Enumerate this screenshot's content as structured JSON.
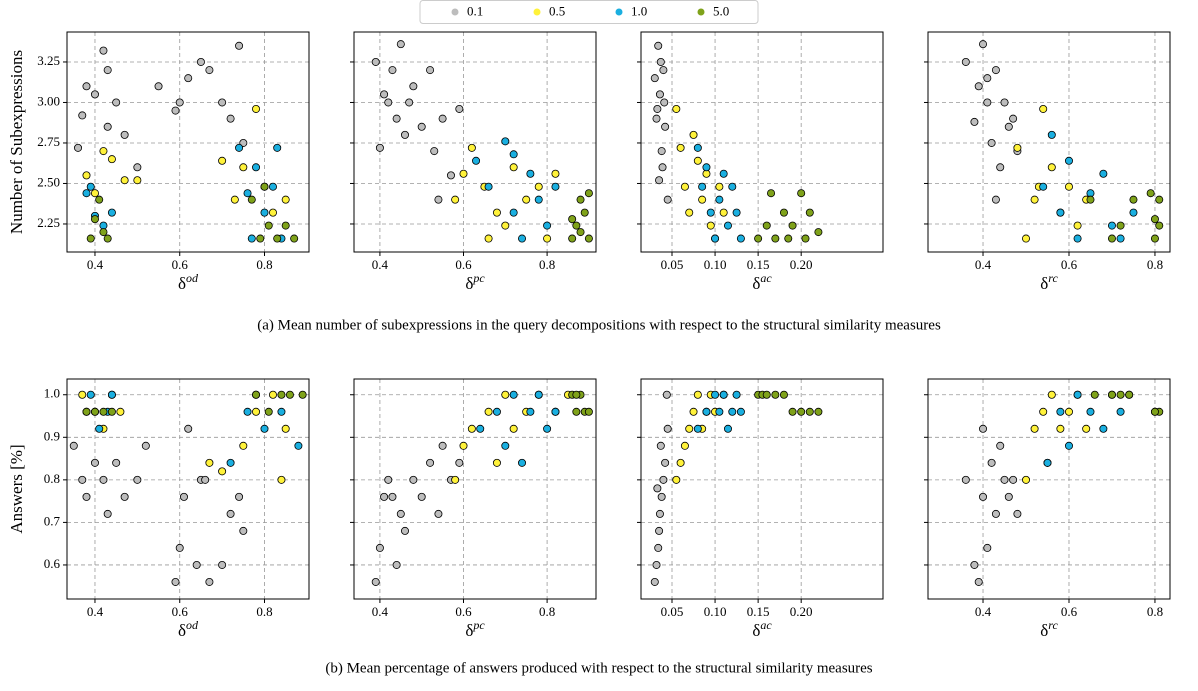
{
  "legend": [
    {
      "name": "0.1",
      "color": "#bdbdbd"
    },
    {
      "name": "0.5",
      "color": "#fff23a"
    },
    {
      "name": "1.0",
      "color": "#1aafe0"
    },
    {
      "name": "5.0",
      "color": "#7fa21a"
    }
  ],
  "captions": [
    "(a) Mean number of subexpressions in the query decompositions with respect to the structural similarity measures",
    "(b) Mean percentage of answers produced with respect to the structural similarity measures"
  ],
  "chart_data": [
    {
      "type": "scatter",
      "y_label": "Number of Subexpressions",
      "x_label": "δ",
      "x_label_superscript": "od",
      "grid": true,
      "xlim": [
        0.334,
        0.905
      ],
      "xticks": [
        0.4,
        0.6,
        0.8
      ],
      "ylim": [
        2.077,
        3.435
      ],
      "yticks": [
        2.25,
        {
          "value": 2.5,
          "label": "2.50"
        },
        2.75,
        {
          "value": 3,
          "label": "3.00"
        },
        3.25
      ],
      "series": [
        {
          "x": [
            0.36,
            0.37,
            0.38,
            0.4,
            0.42,
            0.43,
            0.43,
            0.45,
            0.47,
            0.5,
            0.55,
            0.59,
            0.6,
            0.62,
            0.65,
            0.67,
            0.7,
            0.72,
            0.74,
            0.75
          ],
          "y": [
            2.72,
            2.92,
            3.1,
            3.05,
            3.32,
            3.2,
            2.85,
            3.0,
            2.8,
            2.6,
            3.1,
            2.95,
            3.0,
            3.15,
            3.25,
            3.2,
            3.0,
            2.9,
            3.35,
            2.75
          ]
        },
        {
          "x": [
            0.38,
            0.4,
            0.42,
            0.44,
            0.47,
            0.5,
            0.7,
            0.73,
            0.75,
            0.78,
            0.8,
            0.82,
            0.85
          ],
          "y": [
            2.55,
            2.44,
            2.7,
            2.65,
            2.52,
            2.52,
            2.64,
            2.4,
            2.6,
            2.96,
            2.48,
            2.32,
            2.4
          ]
        },
        {
          "x": [
            0.38,
            0.39,
            0.4,
            0.42,
            0.44,
            0.74,
            0.76,
            0.77,
            0.78,
            0.8,
            0.82,
            0.83,
            0.84
          ],
          "y": [
            2.44,
            2.48,
            2.3,
            2.24,
            2.32,
            2.72,
            2.44,
            2.16,
            2.6,
            2.32,
            2.48,
            2.72,
            2.16
          ]
        },
        {
          "x": [
            0.39,
            0.4,
            0.41,
            0.42,
            0.43,
            0.77,
            0.79,
            0.81,
            0.83,
            0.85,
            0.87,
            0.8
          ],
          "y": [
            2.16,
            2.28,
            2.4,
            2.2,
            2.16,
            2.4,
            2.16,
            2.24,
            2.16,
            2.24,
            2.16,
            2.48
          ]
        }
      ]
    },
    {
      "type": "scatter",
      "x_label": "δ",
      "x_label_superscript": "pc",
      "grid": true,
      "sharey": true,
      "xlim": [
        0.338,
        0.917
      ],
      "xticks": [
        0.4,
        0.6,
        0.8
      ],
      "series": [
        {
          "x": [
            0.39,
            0.4,
            0.41,
            0.43,
            0.44,
            0.45,
            0.47,
            0.48,
            0.5,
            0.52,
            0.53,
            0.55,
            0.57,
            0.59,
            0.42,
            0.46,
            0.54
          ],
          "y": [
            3.25,
            2.72,
            3.05,
            3.2,
            2.9,
            3.36,
            3.0,
            3.1,
            2.85,
            3.2,
            2.7,
            2.9,
            2.55,
            2.96,
            3.0,
            2.8,
            2.4
          ]
        },
        {
          "x": [
            0.58,
            0.6,
            0.62,
            0.65,
            0.68,
            0.7,
            0.72,
            0.75,
            0.78,
            0.8,
            0.82,
            0.66
          ],
          "y": [
            2.4,
            2.56,
            2.72,
            2.48,
            2.32,
            2.24,
            2.6,
            2.4,
            2.48,
            2.16,
            2.56,
            2.16
          ]
        },
        {
          "x": [
            0.63,
            0.66,
            0.7,
            0.72,
            0.74,
            0.76,
            0.78,
            0.8,
            0.82,
            0.72
          ],
          "y": [
            2.64,
            2.48,
            2.76,
            2.32,
            2.16,
            2.56,
            2.4,
            2.24,
            2.48,
            2.68
          ]
        },
        {
          "x": [
            0.86,
            0.87,
            0.88,
            0.89,
            0.9,
            0.86,
            0.88,
            0.9
          ],
          "y": [
            2.16,
            2.24,
            2.4,
            2.32,
            2.44,
            2.28,
            2.2,
            2.16
          ]
        }
      ]
    },
    {
      "type": "scatter",
      "x_label": "δ",
      "x_label_superscript": "ac",
      "grid": true,
      "sharey": true,
      "xlim": [
        0.014,
        0.295
      ],
      "xticks": [
        0.05,
        {
          "value": 0.1,
          "label": "0.10"
        },
        0.15,
        {
          "value": 0.2,
          "label": "0.20"
        }
      ],
      "series": [
        {
          "x": [
            0.03,
            0.032,
            0.034,
            0.036,
            0.038,
            0.04,
            0.042,
            0.035,
            0.037,
            0.033,
            0.039,
            0.041,
            0.045
          ],
          "y": [
            3.15,
            2.9,
            3.35,
            3.05,
            2.7,
            3.2,
            2.85,
            2.52,
            3.25,
            2.96,
            2.6,
            3.0,
            2.4
          ]
        },
        {
          "x": [
            0.055,
            0.06,
            0.065,
            0.07,
            0.075,
            0.08,
            0.085,
            0.09,
            0.095,
            0.1,
            0.105,
            0.11
          ],
          "y": [
            2.96,
            2.72,
            2.48,
            2.32,
            2.8,
            2.64,
            2.4,
            2.56,
            2.24,
            2.16,
            2.48,
            2.32
          ]
        },
        {
          "x": [
            0.08,
            0.085,
            0.09,
            0.095,
            0.1,
            0.105,
            0.11,
            0.115,
            0.12,
            0.125,
            0.13
          ],
          "y": [
            2.72,
            2.48,
            2.6,
            2.32,
            2.16,
            2.4,
            2.56,
            2.24,
            2.48,
            2.32,
            2.16
          ]
        },
        {
          "x": [
            0.15,
            0.16,
            0.165,
            0.17,
            0.18,
            0.185,
            0.19,
            0.2,
            0.205,
            0.21,
            0.22
          ],
          "y": [
            2.16,
            2.24,
            2.44,
            2.16,
            2.32,
            2.16,
            2.24,
            2.44,
            2.16,
            2.32,
            2.2
          ]
        }
      ]
    },
    {
      "type": "scatter",
      "x_label": "δ",
      "x_label_superscript": "rc",
      "grid": true,
      "sharey": true,
      "xlim": [
        0.272,
        0.835
      ],
      "xticks": [
        0.4,
        0.6,
        0.8
      ],
      "series": [
        {
          "x": [
            0.36,
            0.38,
            0.39,
            0.4,
            0.41,
            0.42,
            0.43,
            0.44,
            0.45,
            0.46,
            0.47,
            0.48,
            0.43,
            0.41
          ],
          "y": [
            3.25,
            2.88,
            3.1,
            3.36,
            3.0,
            2.75,
            3.2,
            2.6,
            3.0,
            2.85,
            2.9,
            2.7,
            2.4,
            3.15
          ]
        },
        {
          "x": [
            0.48,
            0.5,
            0.52,
            0.54,
            0.56,
            0.58,
            0.6,
            0.62,
            0.64,
            0.53
          ],
          "y": [
            2.72,
            2.16,
            2.4,
            2.96,
            2.6,
            2.32,
            2.48,
            2.24,
            2.4,
            2.48
          ]
        },
        {
          "x": [
            0.54,
            0.56,
            0.58,
            0.6,
            0.62,
            0.65,
            0.68,
            0.7,
            0.72,
            0.75
          ],
          "y": [
            2.48,
            2.8,
            2.32,
            2.64,
            2.16,
            2.44,
            2.56,
            2.24,
            2.16,
            2.32
          ]
        },
        {
          "x": [
            0.65,
            0.7,
            0.72,
            0.75,
            0.79,
            0.8,
            0.81,
            0.8,
            0.81
          ],
          "y": [
            2.4,
            2.16,
            2.24,
            2.4,
            2.44,
            2.16,
            2.24,
            2.28,
            2.4
          ]
        }
      ]
    },
    {
      "type": "scatter",
      "y_label": "Answers [%]",
      "x_label": "δ",
      "x_label_superscript": "od",
      "grid": true,
      "xlim": [
        0.334,
        0.905
      ],
      "xticks": [
        0.4,
        0.6,
        0.8
      ],
      "ylim": [
        0.52,
        1.037
      ],
      "yticks": [
        0.6,
        0.7,
        0.8,
        0.9,
        {
          "value": 1,
          "label": "1.0"
        }
      ],
      "series": [
        {
          "x": [
            0.35,
            0.37,
            0.38,
            0.4,
            0.42,
            0.43,
            0.45,
            0.47,
            0.5,
            0.52,
            0.59,
            0.6,
            0.61,
            0.62,
            0.64,
            0.65,
            0.67,
            0.7,
            0.72,
            0.74,
            0.75,
            0.66
          ],
          "y": [
            0.88,
            0.8,
            0.76,
            0.84,
            0.8,
            0.72,
            0.84,
            0.76,
            0.8,
            0.88,
            0.56,
            0.64,
            0.76,
            0.92,
            0.6,
            0.8,
            0.56,
            0.6,
            0.72,
            0.76,
            0.68,
            0.8
          ]
        },
        {
          "x": [
            0.37,
            0.4,
            0.42,
            0.44,
            0.46,
            0.67,
            0.7,
            0.75,
            0.78,
            0.82,
            0.84,
            0.85
          ],
          "y": [
            1.0,
            0.96,
            0.92,
            1.0,
            0.96,
            0.84,
            0.82,
            0.88,
            0.96,
            1.0,
            0.8,
            0.92
          ]
        },
        {
          "x": [
            0.38,
            0.39,
            0.41,
            0.43,
            0.44,
            0.72,
            0.76,
            0.78,
            0.8,
            0.84,
            0.88
          ],
          "y": [
            0.96,
            1.0,
            0.92,
            0.96,
            1.0,
            0.84,
            0.96,
            1.0,
            0.92,
            0.96,
            0.88
          ]
        },
        {
          "x": [
            0.38,
            0.4,
            0.42,
            0.44,
            0.78,
            0.81,
            0.84,
            0.86,
            0.89
          ],
          "y": [
            0.96,
            0.96,
            0.96,
            0.96,
            1.0,
            0.96,
            1.0,
            1.0,
            1.0
          ]
        }
      ]
    },
    {
      "type": "scatter",
      "x_label": "δ",
      "x_label_superscript": "pc",
      "grid": true,
      "sharey": true,
      "xlim": [
        0.338,
        0.917
      ],
      "xticks": [
        0.4,
        0.6,
        0.8
      ],
      "series": [
        {
          "x": [
            0.39,
            0.4,
            0.41,
            0.42,
            0.44,
            0.45,
            0.46,
            0.48,
            0.5,
            0.52,
            0.54,
            0.55,
            0.57,
            0.59,
            0.43
          ],
          "y": [
            0.56,
            0.64,
            0.76,
            0.8,
            0.6,
            0.72,
            0.68,
            0.8,
            0.76,
            0.84,
            0.72,
            0.88,
            0.8,
            0.84,
            0.76
          ]
        },
        {
          "x": [
            0.58,
            0.6,
            0.62,
            0.66,
            0.68,
            0.7,
            0.72,
            0.75,
            0.78,
            0.82,
            0.85
          ],
          "y": [
            0.8,
            0.88,
            0.92,
            0.96,
            0.84,
            1.0,
            0.92,
            0.96,
            1.0,
            0.96,
            1.0
          ]
        },
        {
          "x": [
            0.64,
            0.68,
            0.7,
            0.72,
            0.74,
            0.76,
            0.78,
            0.8,
            0.82
          ],
          "y": [
            0.92,
            0.96,
            0.88,
            1.0,
            0.84,
            0.96,
            1.0,
            0.92,
            0.96
          ]
        },
        {
          "x": [
            0.86,
            0.87,
            0.88,
            0.89,
            0.9,
            0.87
          ],
          "y": [
            1.0,
            0.96,
            1.0,
            0.96,
            0.96,
            1.0
          ]
        }
      ]
    },
    {
      "type": "scatter",
      "x_label": "δ",
      "x_label_superscript": "ac",
      "grid": true,
      "sharey": true,
      "xlim": [
        0.014,
        0.295
      ],
      "xticks": [
        0.05,
        {
          "value": 0.1,
          "label": "0.10"
        },
        0.15,
        {
          "value": 0.2,
          "label": "0.20"
        }
      ],
      "series": [
        {
          "x": [
            0.03,
            0.032,
            0.034,
            0.036,
            0.038,
            0.04,
            0.042,
            0.035,
            0.033,
            0.037,
            0.045,
            0.044
          ],
          "y": [
            0.56,
            0.6,
            0.64,
            0.72,
            0.76,
            0.8,
            0.84,
            0.68,
            0.78,
            0.88,
            0.92,
            1.0
          ]
        },
        {
          "x": [
            0.055,
            0.06,
            0.065,
            0.07,
            0.075,
            0.08,
            0.085,
            0.09,
            0.095,
            0.1,
            0.11
          ],
          "y": [
            0.8,
            0.84,
            0.88,
            0.92,
            0.96,
            1.0,
            0.92,
            0.96,
            1.0,
            0.96,
            1.0
          ]
        },
        {
          "x": [
            0.08,
            0.09,
            0.1,
            0.105,
            0.11,
            0.115,
            0.12,
            0.125,
            0.13
          ],
          "y": [
            0.92,
            0.96,
            1.0,
            0.96,
            1.0,
            0.92,
            0.96,
            1.0,
            0.96
          ]
        },
        {
          "x": [
            0.15,
            0.155,
            0.16,
            0.17,
            0.18,
            0.19,
            0.2,
            0.21,
            0.22
          ],
          "y": [
            1.0,
            1.0,
            1.0,
            1.0,
            1.0,
            0.96,
            0.96,
            0.96,
            0.96
          ]
        }
      ]
    },
    {
      "type": "scatter",
      "x_label": "δ",
      "x_label_superscript": "rc",
      "grid": true,
      "sharey": true,
      "xlim": [
        0.272,
        0.835
      ],
      "xticks": [
        0.4,
        0.6,
        0.8
      ],
      "series": [
        {
          "x": [
            0.36,
            0.38,
            0.39,
            0.4,
            0.41,
            0.42,
            0.43,
            0.44,
            0.45,
            0.46,
            0.47,
            0.48,
            0.4
          ],
          "y": [
            0.8,
            0.6,
            0.56,
            0.76,
            0.64,
            0.84,
            0.72,
            0.88,
            0.8,
            0.76,
            0.8,
            0.72,
            0.92
          ]
        },
        {
          "x": [
            0.5,
            0.52,
            0.54,
            0.55,
            0.56,
            0.58,
            0.6,
            0.62,
            0.64
          ],
          "y": [
            0.8,
            0.92,
            0.96,
            0.84,
            1.0,
            0.92,
            0.96,
            1.0,
            0.92
          ]
        },
        {
          "x": [
            0.55,
            0.58,
            0.6,
            0.62,
            0.65,
            0.68,
            0.7,
            0.72,
            0.74
          ],
          "y": [
            0.84,
            0.96,
            0.88,
            1.0,
            0.96,
            0.92,
            1.0,
            0.96,
            1.0
          ]
        },
        {
          "x": [
            0.66,
            0.7,
            0.72,
            0.74,
            0.8,
            0.81,
            0.8
          ],
          "y": [
            1.0,
            1.0,
            1.0,
            1.0,
            0.96,
            0.96,
            0.96
          ]
        }
      ]
    }
  ]
}
